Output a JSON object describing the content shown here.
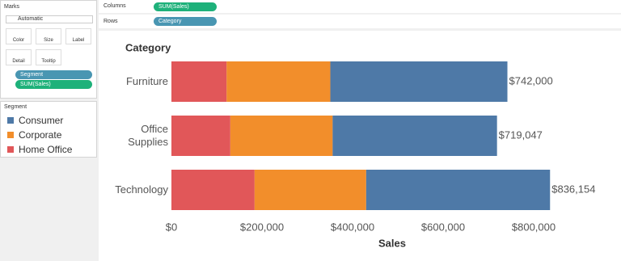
{
  "ui": {
    "columns_label": "Columns",
    "columns_pill": "SUM(Sales)",
    "rows_label": "Rows",
    "rows_pill": "Category",
    "marks_title": "Marks",
    "mark_type": "Automatic",
    "mark_buttons": [
      "Color",
      "Size",
      "Label",
      "Detail",
      "Tooltip"
    ],
    "mark_pills": [
      "Segment",
      "SUM(Sales)"
    ]
  },
  "chart_data": {
    "type": "stacked-bar-horizontal",
    "y_label": "Category",
    "x_label": "Sales",
    "legend_title": "Segment",
    "categories": [
      "Furniture",
      "Office Supplies",
      "Technology"
    ],
    "series": [
      {
        "name": "Consumer",
        "color": "#4e79a7",
        "values": [
          391049,
          363001,
          406040
        ]
      },
      {
        "name": "Corporate",
        "color": "#f28e2b",
        "values": [
          229020,
          225962,
          246450
        ]
      },
      {
        "name": "Home Office",
        "color": "#e15759",
        "values": [
          121930,
          130084,
          183664
        ]
      }
    ],
    "totals": [
      742000,
      719047,
      836154
    ],
    "total_labels": [
      "$742,000",
      "$719,047",
      "$836,154"
    ],
    "xlim": [
      0,
      980000
    ],
    "xticks": [
      {
        "value": 0,
        "label": "$0"
      },
      {
        "value": 200000,
        "label": "$200,000"
      },
      {
        "value": 400000,
        "label": "$400,000"
      },
      {
        "value": 600000,
        "label": "$600,000"
      },
      {
        "value": 800000,
        "label": "$800,000"
      }
    ],
    "grid": false
  }
}
